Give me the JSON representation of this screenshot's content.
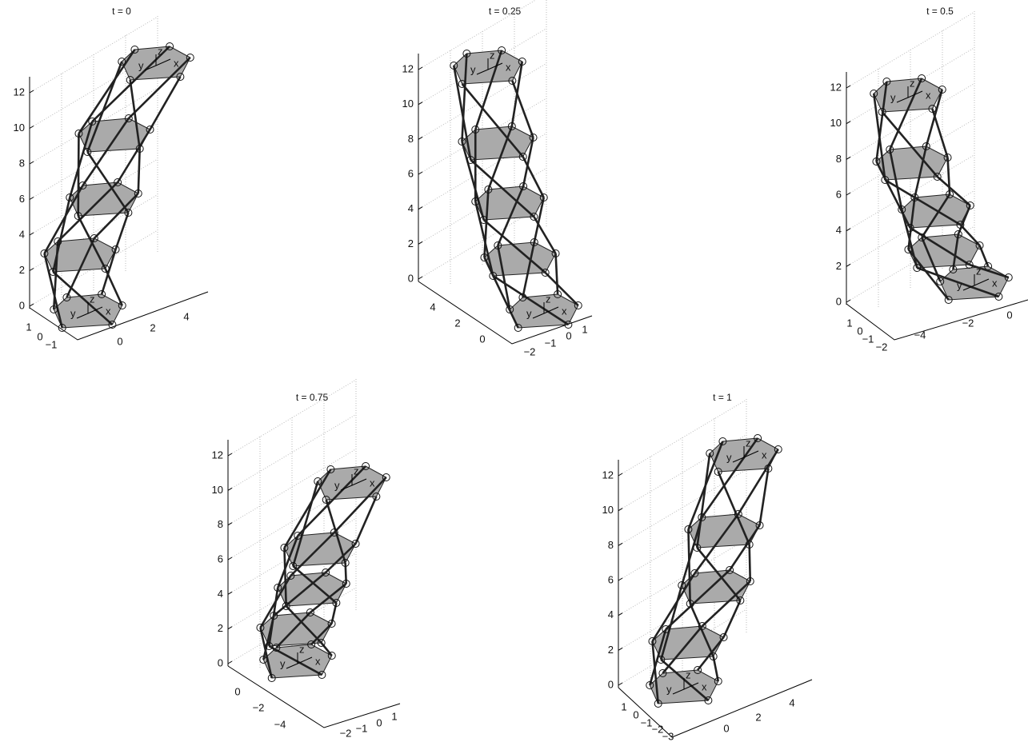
{
  "frame_labels": {
    "x": "x",
    "y": "y",
    "z": "z"
  },
  "panels": [
    {
      "title": "t = 0",
      "z_ticks": [
        "0",
        "2",
        "4",
        "6",
        "8",
        "10",
        "12"
      ],
      "b_ticks": [
        "1",
        "0",
        "−1"
      ],
      "a_ticks": [
        "0",
        "2",
        "4"
      ]
    },
    {
      "title": "t = 0.25",
      "z_ticks": [
        "0",
        "2",
        "4",
        "6",
        "8",
        "10",
        "12"
      ],
      "b_ticks": [
        "4",
        "2",
        "0"
      ],
      "a_ticks": [
        "−2",
        "−1",
        "0",
        "1"
      ]
    },
    {
      "title": "t = 0.5",
      "z_ticks": [
        "0",
        "2",
        "4",
        "6",
        "8",
        "10",
        "12"
      ],
      "b_ticks": [
        "1",
        "0",
        "−1",
        "−2"
      ],
      "a_ticks": [
        "−4",
        "−2",
        "0"
      ]
    },
    {
      "title": "t = 0.75",
      "z_ticks": [
        "0",
        "2",
        "4",
        "6",
        "8",
        "10",
        "12"
      ],
      "b_ticks": [
        "0",
        "−2",
        "−4"
      ],
      "a_ticks": [
        "−2",
        "−1",
        "0",
        "1"
      ]
    },
    {
      "title": "t = 1",
      "z_ticks": [
        "0",
        "2",
        "4",
        "6",
        "8",
        "10",
        "12"
      ],
      "b_ticks": [
        "1",
        "0",
        "−1",
        "−2",
        "−3"
      ],
      "a_ticks": [
        "0",
        "2",
        "4"
      ]
    }
  ]
}
